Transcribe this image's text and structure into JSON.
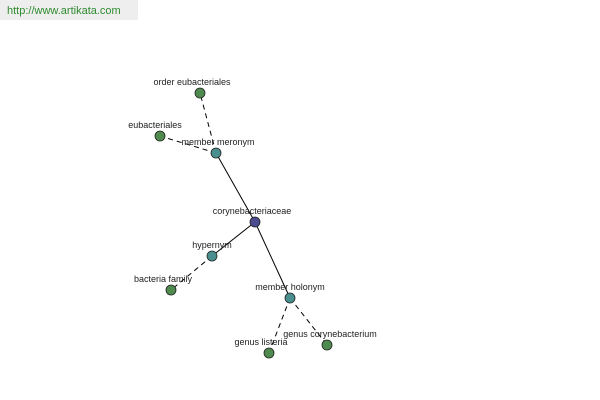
{
  "header": {
    "url": "http://www.artikata.com"
  },
  "nodes": [
    {
      "label": "corynebacteriaceae"
    },
    {
      "label": "member meronym"
    },
    {
      "label": "order eubacteriales"
    },
    {
      "label": "eubacteriales"
    },
    {
      "label": "hypernym"
    },
    {
      "label": "bacteria family"
    },
    {
      "label": "member holonym"
    },
    {
      "label": "genus listeria"
    },
    {
      "label": "genus corynebacterium"
    }
  ]
}
